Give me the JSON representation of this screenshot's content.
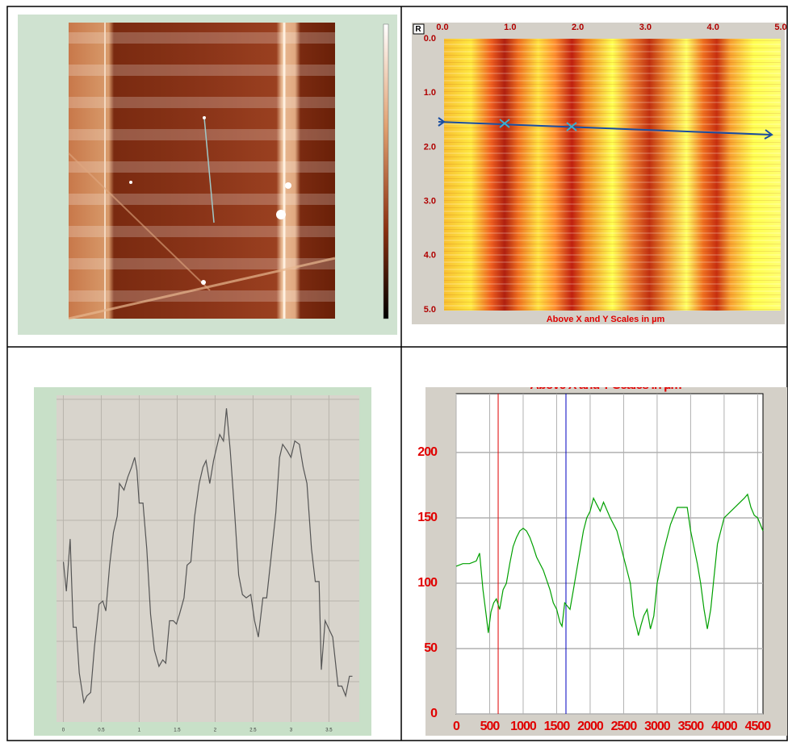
{
  "panels": {
    "top_right": {
      "corner_label": "R",
      "x_labels": [
        "0.0",
        "1.0",
        "2.0",
        "3.0",
        "4.0",
        "5.0"
      ],
      "y_labels": [
        "0.0",
        "1.0",
        "2.0",
        "3.0",
        "4.0",
        "5.0"
      ],
      "caption": "Above X and Y Scales in µm"
    }
  },
  "chart_data": [
    {
      "type": "line",
      "color": "#555555",
      "x": [
        0,
        0.04,
        0.09,
        0.13,
        0.17,
        0.21,
        0.27,
        0.31,
        0.36,
        0.41,
        0.47,
        0.52,
        0.56,
        0.61,
        0.66,
        0.71,
        0.74,
        0.8,
        0.85,
        0.9,
        0.94,
        0.97,
        1.0,
        1.05,
        1.1,
        1.15,
        1.2,
        1.26,
        1.31,
        1.35,
        1.4,
        1.45,
        1.49,
        1.53,
        1.59,
        1.63,
        1.68,
        1.73,
        1.79,
        1.84,
        1.88,
        1.93,
        1.98,
        2.02,
        2.06,
        2.11,
        2.15,
        2.2,
        2.26,
        2.31,
        2.36,
        2.41,
        2.47,
        2.52,
        2.57,
        2.63,
        2.68,
        2.74,
        2.8,
        2.85,
        2.89,
        2.95,
        3.0,
        3.05,
        3.11,
        3.16,
        3.21,
        3.27,
        3.32,
        3.37,
        3.4,
        3.45,
        3.51,
        3.55,
        3.62,
        3.67,
        3.72,
        3.77,
        3.81
      ],
      "values": [
        4.9,
        4.0,
        5.6,
        2.9,
        2.9,
        1.5,
        0.6,
        0.8,
        0.9,
        2.3,
        3.6,
        3.7,
        3.4,
        4.8,
        5.8,
        6.3,
        7.3,
        7.1,
        7.5,
        7.8,
        8.1,
        7.7,
        6.7,
        6.7,
        5.3,
        3.3,
        2.2,
        1.7,
        1.9,
        1.8,
        3.1,
        3.1,
        3.0,
        3.3,
        3.8,
        4.8,
        4.9,
        6.3,
        7.3,
        7.8,
        8.0,
        7.3,
        8.0,
        8.4,
        8.8,
        8.6,
        9.6,
        8.3,
        6.3,
        4.5,
        3.9,
        3.8,
        3.9,
        3.1,
        2.6,
        3.8,
        3.8,
        5.1,
        6.4,
        8.1,
        8.5,
        8.3,
        8.1,
        8.6,
        8.5,
        7.8,
        7.3,
        5.3,
        4.3,
        4.3,
        1.6,
        3.1,
        2.8,
        2.6,
        1.1,
        1.1,
        0.8,
        1.4,
        1.4
      ],
      "xlim": [
        -0.09,
        3.9
      ],
      "ylim": [
        0,
        10
      ],
      "xticks": [
        0,
        0.5,
        1.0,
        1.5,
        2.0,
        2.5,
        3.0,
        3.5
      ],
      "grid": true
    },
    {
      "type": "line",
      "color": "#00a000",
      "x": [
        0,
        100,
        200,
        300,
        350,
        400,
        450,
        480,
        520,
        560,
        600,
        650,
        700,
        750,
        800,
        850,
        900,
        950,
        1000,
        1050,
        1100,
        1150,
        1200,
        1300,
        1400,
        1450,
        1500,
        1550,
        1580,
        1620,
        1700,
        1750,
        1800,
        1850,
        1900,
        1950,
        2000,
        2050,
        2100,
        2150,
        2200,
        2300,
        2400,
        2500,
        2600,
        2650,
        2700,
        2720,
        2760,
        2800,
        2850,
        2900,
        2950,
        3000,
        3100,
        3200,
        3300,
        3400,
        3450,
        3500,
        3600,
        3650,
        3700,
        3750,
        3800,
        3850,
        3900,
        4000,
        4100,
        4200,
        4300,
        4350,
        4400,
        4450,
        4500,
        4580
      ],
      "values": [
        113,
        115,
        115,
        117,
        123,
        95,
        75,
        62,
        78,
        85,
        88,
        80,
        95,
        100,
        115,
        128,
        135,
        140,
        142,
        140,
        135,
        128,
        120,
        110,
        95,
        85,
        80,
        70,
        67,
        85,
        80,
        95,
        110,
        125,
        140,
        150,
        155,
        165,
        160,
        155,
        162,
        150,
        140,
        120,
        100,
        75,
        65,
        60,
        68,
        75,
        80,
        65,
        75,
        100,
        125,
        145,
        158,
        158,
        158,
        140,
        115,
        100,
        80,
        65,
        80,
        105,
        130,
        150,
        155,
        160,
        165,
        168,
        158,
        152,
        150,
        140
      ],
      "xlim": [
        0,
        4580
      ],
      "ylim": [
        0,
        245
      ],
      "xticks": [
        0,
        500,
        1000,
        1500,
        2000,
        2500,
        3000,
        3500,
        4000,
        4500
      ],
      "yticks": [
        0,
        50,
        100,
        150,
        200
      ],
      "grid": true,
      "cursors": [
        {
          "x": 627,
          "color": "#e00000"
        },
        {
          "x": 1639,
          "color": "#0000c0"
        }
      ]
    }
  ]
}
